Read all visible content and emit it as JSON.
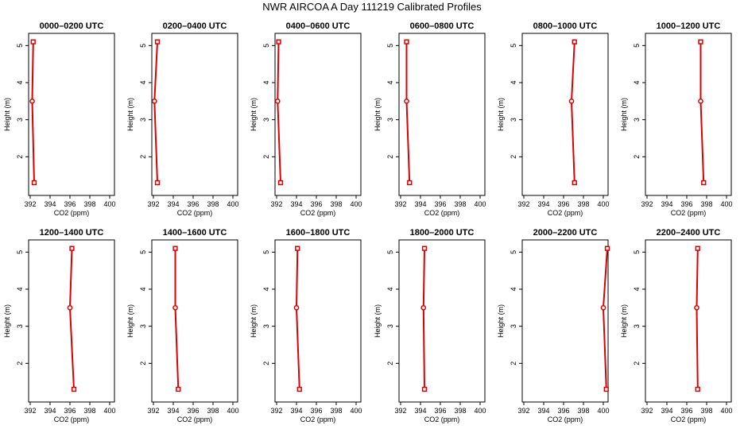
{
  "title": "NWR AIRCOA A   Day 111219   Calibrated Profiles",
  "colors": {
    "profile": "#dd0000",
    "frame": "#000000"
  },
  "chart_data": [
    {
      "type": "line",
      "title": "0000–0200 UTC",
      "xlabel": "CO2 (ppm)",
      "ylabel": "Height (m)",
      "xlim": [
        392,
        400
      ],
      "ylim": [
        1,
        5.2
      ],
      "xticks": [
        "392",
        "394",
        "396",
        "398",
        "400"
      ],
      "yticks": [
        "2",
        "3",
        "4",
        "5"
      ],
      "x": [
        392.4,
        392.2,
        392.3
      ],
      "y": [
        1.3,
        3.5,
        5.1
      ]
    },
    {
      "type": "line",
      "title": "0200–0400 UTC",
      "xlabel": "CO2 (ppm)",
      "ylabel": "Height (m)",
      "xlim": [
        392,
        400
      ],
      "ylim": [
        1,
        5.2
      ],
      "xticks": [
        "392",
        "394",
        "396",
        "398",
        "400"
      ],
      "yticks": [
        "2",
        "3",
        "4",
        "5"
      ],
      "x": [
        392.4,
        392.1,
        392.4
      ],
      "y": [
        1.3,
        3.5,
        5.1
      ]
    },
    {
      "type": "line",
      "title": "0400–0600 UTC",
      "xlabel": "CO2 (ppm)",
      "ylabel": "Height (m)",
      "xlim": [
        392,
        400
      ],
      "ylim": [
        1,
        5.2
      ],
      "xticks": [
        "392",
        "394",
        "396",
        "398",
        "400"
      ],
      "yticks": [
        "2",
        "3",
        "4",
        "5"
      ],
      "x": [
        392.4,
        392.1,
        392.2
      ],
      "y": [
        1.3,
        3.5,
        5.1
      ]
    },
    {
      "type": "line",
      "title": "0600–0800 UTC",
      "xlabel": "CO2 (ppm)",
      "ylabel": "Height (m)",
      "xlim": [
        392,
        400
      ],
      "ylim": [
        1,
        5.2
      ],
      "xticks": [
        "392",
        "394",
        "396",
        "398",
        "400"
      ],
      "yticks": [
        "2",
        "3",
        "4",
        "5"
      ],
      "x": [
        392.9,
        392.6,
        392.6
      ],
      "y": [
        1.3,
        3.5,
        5.1
      ]
    },
    {
      "type": "line",
      "title": "0800–1000 UTC",
      "xlabel": "CO2 (ppm)",
      "ylabel": "Height (m)",
      "xlim": [
        392,
        400
      ],
      "ylim": [
        1,
        5.2
      ],
      "xticks": [
        "392",
        "394",
        "396",
        "398",
        "400"
      ],
      "yticks": [
        "2",
        "3",
        "4",
        "5"
      ],
      "x": [
        397.1,
        396.8,
        397.1
      ],
      "y": [
        1.3,
        3.5,
        5.1
      ]
    },
    {
      "type": "line",
      "title": "1000–1200 UTC",
      "xlabel": "CO2 (ppm)",
      "ylabel": "Height (m)",
      "xlim": [
        392,
        400
      ],
      "ylim": [
        1,
        5.2
      ],
      "xticks": [
        "392",
        "394",
        "396",
        "398",
        "400"
      ],
      "yticks": [
        "2",
        "3",
        "4",
        "5"
      ],
      "x": [
        397.7,
        397.4,
        397.4
      ],
      "y": [
        1.3,
        3.5,
        5.1
      ]
    },
    {
      "type": "line",
      "title": "1200–1400 UTC",
      "xlabel": "CO2 (ppm)",
      "ylabel": "Height (m)",
      "xlim": [
        392,
        400
      ],
      "ylim": [
        1,
        5.2
      ],
      "xticks": [
        "392",
        "394",
        "396",
        "398",
        "400"
      ],
      "yticks": [
        "2",
        "3",
        "4",
        "5"
      ],
      "x": [
        396.4,
        396.0,
        396.2
      ],
      "y": [
        1.3,
        3.5,
        5.1
      ]
    },
    {
      "type": "line",
      "title": "1400–1600 UTC",
      "xlabel": "CO2 (ppm)",
      "ylabel": "Height (m)",
      "xlim": [
        392,
        400
      ],
      "ylim": [
        1,
        5.2
      ],
      "xticks": [
        "392",
        "394",
        "396",
        "398",
        "400"
      ],
      "yticks": [
        "2",
        "3",
        "4",
        "5"
      ],
      "x": [
        394.5,
        394.2,
        394.2
      ],
      "y": [
        1.3,
        3.5,
        5.1
      ]
    },
    {
      "type": "line",
      "title": "1600–1800 UTC",
      "xlabel": "CO2 (ppm)",
      "ylabel": "Height (m)",
      "xlim": [
        392,
        400
      ],
      "ylim": [
        1,
        5.2
      ],
      "xticks": [
        "392",
        "394",
        "396",
        "398",
        "400"
      ],
      "yticks": [
        "2",
        "3",
        "4",
        "5"
      ],
      "x": [
        394.3,
        394.0,
        394.1
      ],
      "y": [
        1.3,
        3.5,
        5.1
      ]
    },
    {
      "type": "line",
      "title": "1800–2000 UTC",
      "xlabel": "CO2 (ppm)",
      "ylabel": "Height (m)",
      "xlim": [
        392,
        400
      ],
      "ylim": [
        1,
        5.2
      ],
      "xticks": [
        "392",
        "394",
        "396",
        "398",
        "400"
      ],
      "yticks": [
        "2",
        "3",
        "4",
        "5"
      ],
      "x": [
        394.4,
        394.3,
        394.4
      ],
      "y": [
        1.3,
        3.5,
        5.1
      ]
    },
    {
      "type": "line",
      "title": "2000–2200 UTC",
      "xlabel": "CO2 (ppm)",
      "ylabel": "Height (m)",
      "xlim": [
        392,
        400
      ],
      "ylim": [
        1,
        5.2
      ],
      "xticks": [
        "392",
        "394",
        "396",
        "398",
        "400"
      ],
      "yticks": [
        "2",
        "3",
        "4",
        "5"
      ],
      "x": [
        400.3,
        400.0,
        400.4
      ],
      "y": [
        1.3,
        3.5,
        5.1
      ]
    },
    {
      "type": "line",
      "title": "2200–2400 UTC",
      "xlabel": "CO2 (ppm)",
      "ylabel": "Height (m)",
      "xlim": [
        392,
        400
      ],
      "ylim": [
        1,
        5.2
      ],
      "xticks": [
        "392",
        "394",
        "396",
        "398",
        "400"
      ],
      "yticks": [
        "2",
        "3",
        "4",
        "5"
      ],
      "x": [
        397.1,
        397.0,
        397.1
      ],
      "y": [
        1.3,
        3.5,
        5.1
      ]
    }
  ]
}
